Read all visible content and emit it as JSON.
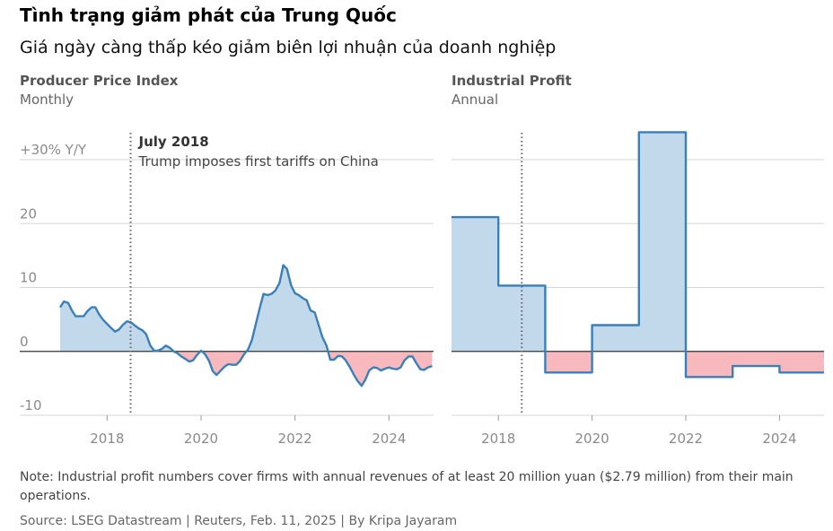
{
  "header": {
    "title": "Tình trạng giảm phát của Trung Quốc",
    "subtitle": "Giá ngày càng thấp kéo giảm biên lợi nhuận của doanh nghiệp"
  },
  "footer": {
    "note": "Note: Industrial profit numbers cover firms with annual revenues of at least 20 million yuan ($2.79 million) from their main operations.",
    "source": "Source: LSEG Datastream | Reuters, Feb. 11, 2025 | By Kripa Jayaram"
  },
  "colors": {
    "line": "#3a7fb8",
    "positive_fill": "#c2d9ec",
    "negative_fill": "#f7b9bd",
    "grid": "#d6d6d6",
    "zero_line": "#333333"
  },
  "chart_data": [
    {
      "type": "area",
      "title": "Producer Price Index",
      "subtitle": "Monthly",
      "ylim": [
        -10,
        30
      ],
      "y_ticks": [
        -10,
        0,
        10,
        20,
        30
      ],
      "y_tick_labels": [
        "-10",
        "0",
        "10",
        "20",
        "+30% Y/Y"
      ],
      "x_ticks": [
        2018,
        2020,
        2022,
        2024
      ],
      "xlim": [
        2017.0,
        2024.95
      ],
      "annotation": {
        "x": 2018.5,
        "title": "July 2018",
        "text": "Trump imposes first tariffs on China"
      },
      "series": [
        {
          "x": [
            2017.0,
            2017.08,
            2017.17,
            2017.25,
            2017.33,
            2017.42,
            2017.5,
            2017.58,
            2017.67,
            2017.75,
            2017.83,
            2017.92,
            2018.0,
            2018.08,
            2018.17,
            2018.25,
            2018.33,
            2018.42,
            2018.5,
            2018.58,
            2018.67,
            2018.75,
            2018.83,
            2018.92,
            2019.0,
            2019.08,
            2019.17,
            2019.25,
            2019.33,
            2019.42,
            2019.5,
            2019.58,
            2019.67,
            2019.75,
            2019.83,
            2019.92,
            2020.0,
            2020.08,
            2020.17,
            2020.25,
            2020.33,
            2020.42,
            2020.5,
            2020.58,
            2020.67,
            2020.75,
            2020.83,
            2020.92,
            2021.0,
            2021.08,
            2021.17,
            2021.25,
            2021.33,
            2021.42,
            2021.5,
            2021.58,
            2021.67,
            2021.75,
            2021.83,
            2021.92,
            2022.0,
            2022.08,
            2022.17,
            2022.25,
            2022.33,
            2022.42,
            2022.5,
            2022.58,
            2022.67,
            2022.75,
            2022.83,
            2022.92,
            2023.0,
            2023.08,
            2023.17,
            2023.25,
            2023.33,
            2023.42,
            2023.5,
            2023.58,
            2023.67,
            2023.75,
            2023.83,
            2023.92,
            2024.0,
            2024.08,
            2024.17,
            2024.25,
            2024.33,
            2024.42,
            2024.5,
            2024.58,
            2024.67,
            2024.75,
            2024.83,
            2024.92
          ],
          "values": [
            6.9,
            7.8,
            7.6,
            6.4,
            5.5,
            5.5,
            5.5,
            6.3,
            6.9,
            6.9,
            5.8,
            4.9,
            4.3,
            3.7,
            3.1,
            3.4,
            4.1,
            4.7,
            4.6,
            4.1,
            3.6,
            3.3,
            2.7,
            0.9,
            0.1,
            0.1,
            0.4,
            0.9,
            0.6,
            0.0,
            -0.3,
            -0.8,
            -1.2,
            -1.6,
            -1.4,
            -0.5,
            0.1,
            -0.4,
            -1.5,
            -3.1,
            -3.7,
            -3.0,
            -2.4,
            -2.0,
            -2.1,
            -2.1,
            -1.5,
            -0.4,
            0.3,
            1.7,
            4.4,
            6.8,
            9.0,
            8.8,
            9.0,
            9.5,
            10.7,
            13.5,
            12.9,
            10.3,
            9.1,
            8.8,
            8.3,
            8.0,
            6.4,
            6.1,
            4.2,
            2.3,
            0.9,
            -1.3,
            -1.3,
            -0.7,
            -0.8,
            -1.4,
            -2.5,
            -3.6,
            -4.6,
            -5.4,
            -4.4,
            -3.0,
            -2.5,
            -2.6,
            -3.0,
            -2.7,
            -2.5,
            -2.7,
            -2.8,
            -2.5,
            -1.4,
            -0.8,
            -0.8,
            -1.8,
            -2.8,
            -2.9,
            -2.5,
            -2.3
          ]
        }
      ]
    },
    {
      "type": "area",
      "title": "Industrial Profit",
      "subtitle": "Annual",
      "ylim": [
        -10,
        30
      ],
      "x_ticks": [
        2018,
        2020,
        2022,
        2024
      ],
      "xlim": [
        2017.0,
        2024.95
      ],
      "annotation": {
        "x": 2018.5
      },
      "series": [
        {
          "x": [
            2017,
            2018,
            2019,
            2020,
            2021,
            2022,
            2023,
            2024
          ],
          "values": [
            21.0,
            10.3,
            -3.3,
            4.1,
            34.3,
            -4.0,
            -2.3,
            -3.3
          ]
        }
      ]
    }
  ]
}
